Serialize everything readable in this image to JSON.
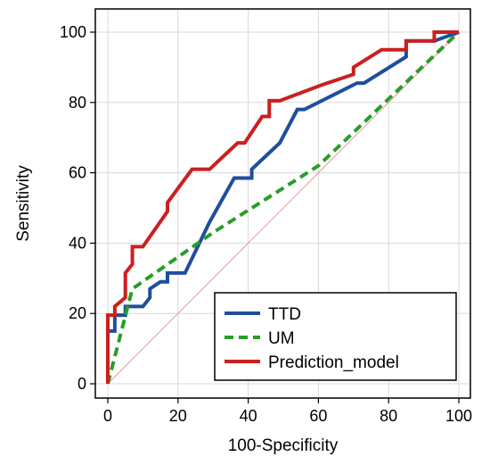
{
  "chart_data": {
    "type": "line",
    "xlabel": "100-Specificity",
    "ylabel": "Sensitivity",
    "xlim": [
      0,
      100
    ],
    "ylim": [
      0,
      100
    ],
    "xticks": [
      0,
      20,
      40,
      60,
      80,
      100
    ],
    "yticks": [
      0,
      20,
      40,
      60,
      80,
      100
    ],
    "grid": true,
    "legend_position": "bottom-right",
    "series": [
      {
        "name": "TTD",
        "color": "#1f4e9c",
        "dash": "solid",
        "points": [
          [
            0,
            0
          ],
          [
            0,
            15
          ],
          [
            2,
            15
          ],
          [
            2,
            19.5
          ],
          [
            5,
            19.5
          ],
          [
            5,
            22
          ],
          [
            10,
            22
          ],
          [
            12,
            24.5
          ],
          [
            12,
            27
          ],
          [
            15,
            29
          ],
          [
            17,
            29
          ],
          [
            17,
            31.5
          ],
          [
            22,
            31.5
          ],
          [
            29,
            46
          ],
          [
            36,
            58.5
          ],
          [
            41,
            58.5
          ],
          [
            41,
            61
          ],
          [
            49,
            68.5
          ],
          [
            54,
            78
          ],
          [
            56,
            78
          ],
          [
            71,
            85.5
          ],
          [
            73,
            85.5
          ],
          [
            85,
            93
          ],
          [
            85,
            97.5
          ],
          [
            93,
            97.5
          ],
          [
            100,
            100
          ]
        ]
      },
      {
        "name": "UM",
        "color": "#2a9d2a",
        "dash": "dashed",
        "points": [
          [
            0,
            0
          ],
          [
            7,
            27
          ],
          [
            30,
            43
          ],
          [
            60,
            62
          ],
          [
            100,
            100
          ]
        ]
      },
      {
        "name": "Prediction_model",
        "color": "#cc1f1f",
        "dash": "solid",
        "points": [
          [
            0,
            0
          ],
          [
            0,
            19.5
          ],
          [
            2,
            19.5
          ],
          [
            2,
            22
          ],
          [
            5,
            24.5
          ],
          [
            5,
            31.5
          ],
          [
            7,
            34
          ],
          [
            7,
            39
          ],
          [
            10,
            39
          ],
          [
            17,
            49
          ],
          [
            17,
            51.5
          ],
          [
            24,
            61
          ],
          [
            29,
            61
          ],
          [
            37,
            68.5
          ],
          [
            39,
            68.5
          ],
          [
            44,
            76
          ],
          [
            46,
            76
          ],
          [
            46,
            80.5
          ],
          [
            49,
            80.5
          ],
          [
            61,
            85
          ],
          [
            70,
            88
          ],
          [
            70,
            90
          ],
          [
            78,
            95
          ],
          [
            85,
            95
          ],
          [
            85,
            97.5
          ],
          [
            93,
            97.5
          ],
          [
            93,
            100
          ],
          [
            100,
            100
          ]
        ]
      }
    ],
    "reference_line": {
      "color": "#e59aa0",
      "points": [
        [
          0,
          0
        ],
        [
          100,
          100
        ]
      ]
    }
  }
}
